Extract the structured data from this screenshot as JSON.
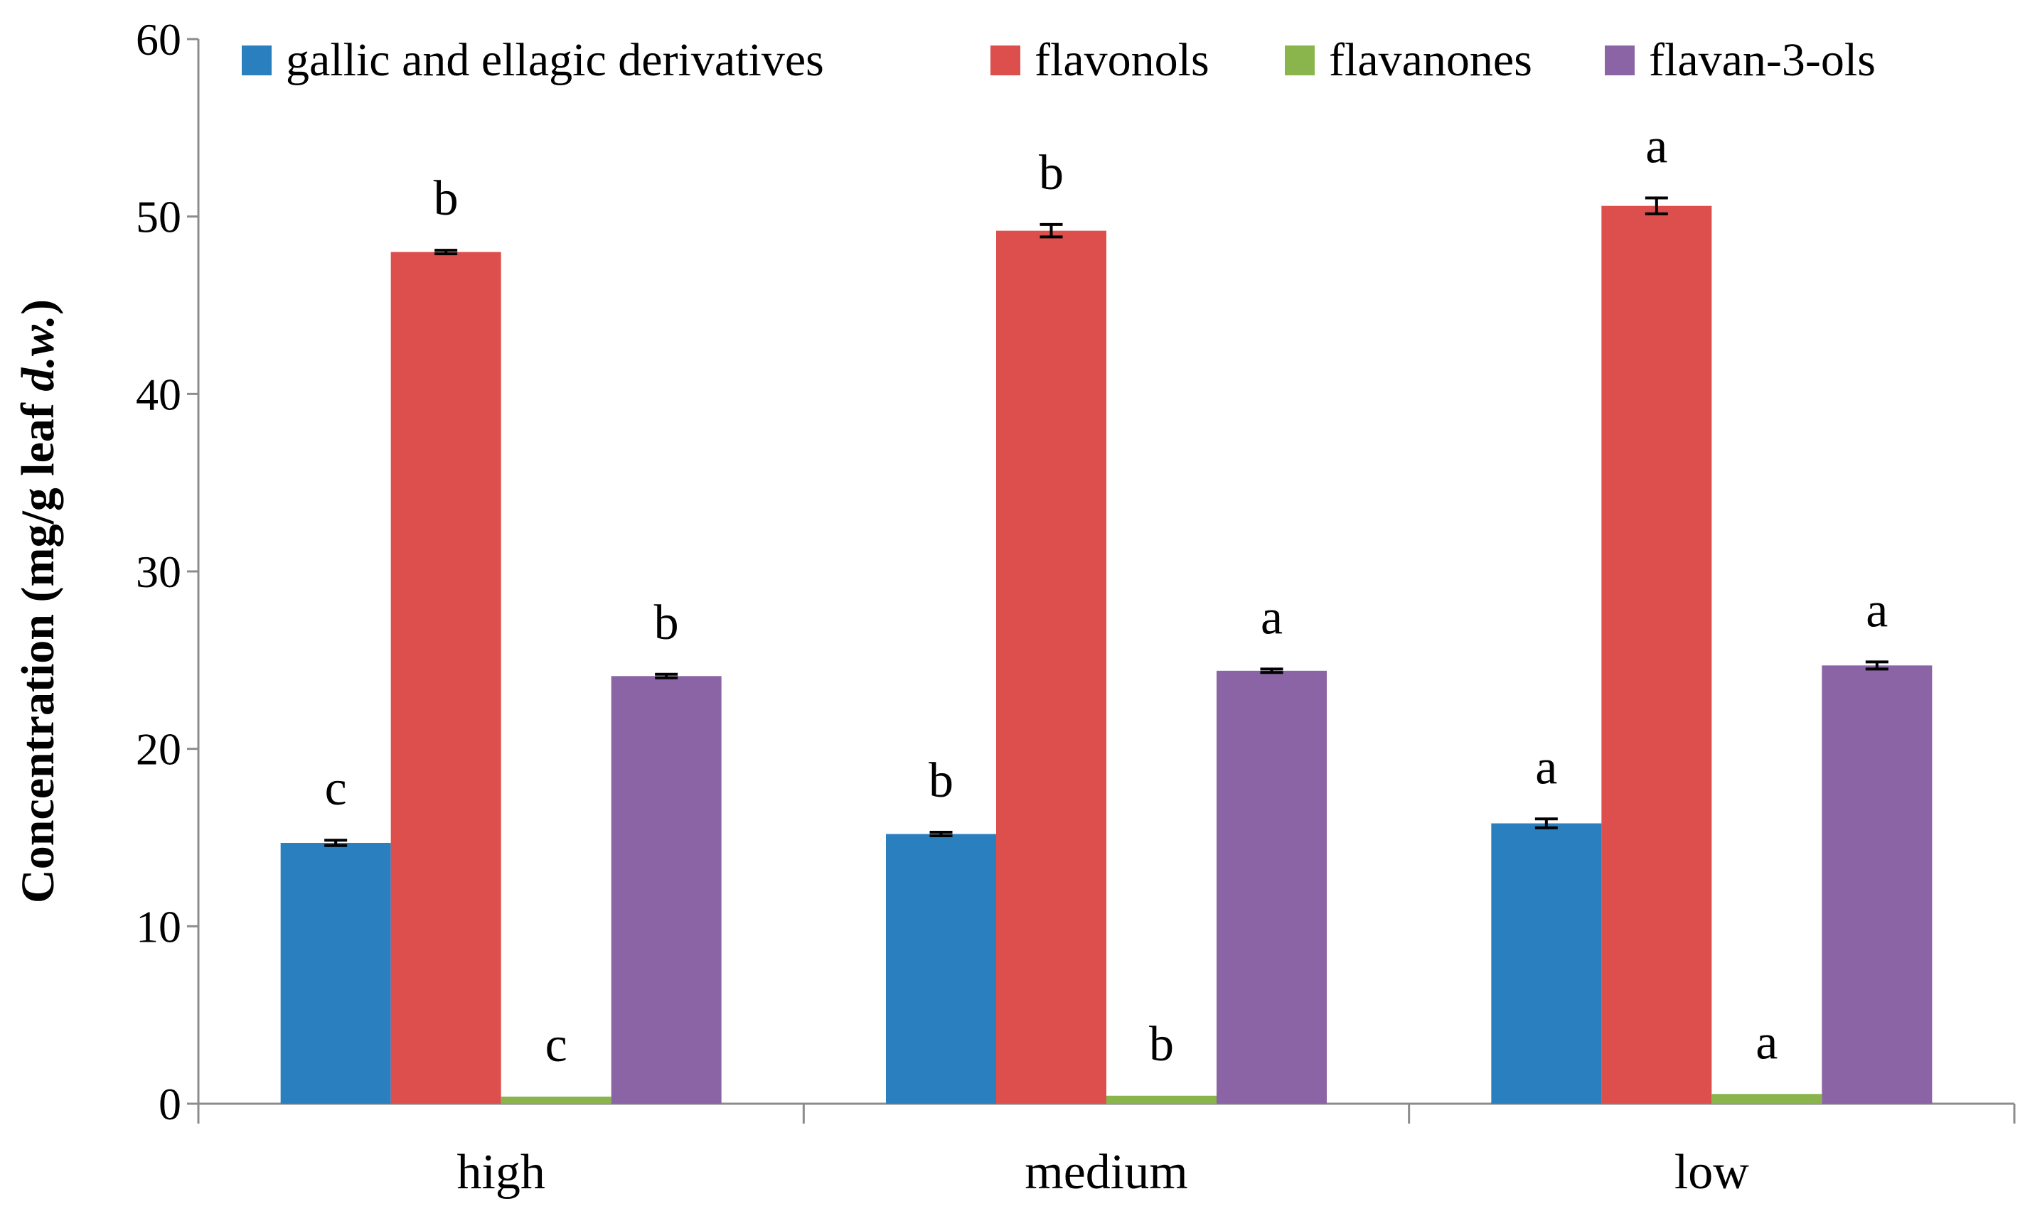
{
  "chart_data": {
    "type": "bar",
    "title": "",
    "xlabel": "",
    "ylabel_parts": [
      "Concentration (mg/g leaf ",
      "d.w.",
      ")"
    ],
    "ylim": [
      0,
      60
    ],
    "yticks": [
      0,
      10,
      20,
      30,
      40,
      50,
      60
    ],
    "grid": false,
    "legend_position": "top",
    "categories": [
      "high",
      "medium",
      "low"
    ],
    "series": [
      {
        "name": "gallic and ellagic derivatives",
        "color": "#2a7fbf",
        "values": [
          14.7,
          15.2,
          15.8
        ],
        "errors": [
          0.15,
          0.1,
          0.25
        ],
        "letters": [
          "c",
          "b",
          "a"
        ]
      },
      {
        "name": "flavonols",
        "color": "#dc4f4c",
        "values": [
          48.0,
          49.2,
          50.6
        ],
        "errors": [
          0.1,
          0.35,
          0.45
        ],
        "letters": [
          "b",
          "b",
          "a"
        ]
      },
      {
        "name": "flavanones",
        "color": "#8ab54d",
        "values": [
          0.4,
          0.45,
          0.55
        ],
        "errors": [
          0.0,
          0.0,
          0.0
        ],
        "letters": [
          "c",
          "b",
          "a"
        ]
      },
      {
        "name": "flavan-3-ols",
        "color": "#8a64a5",
        "values": [
          24.1,
          24.4,
          24.7
        ],
        "errors": [
          0.1,
          0.1,
          0.2
        ],
        "letters": [
          "b",
          "a",
          "a"
        ]
      }
    ]
  }
}
